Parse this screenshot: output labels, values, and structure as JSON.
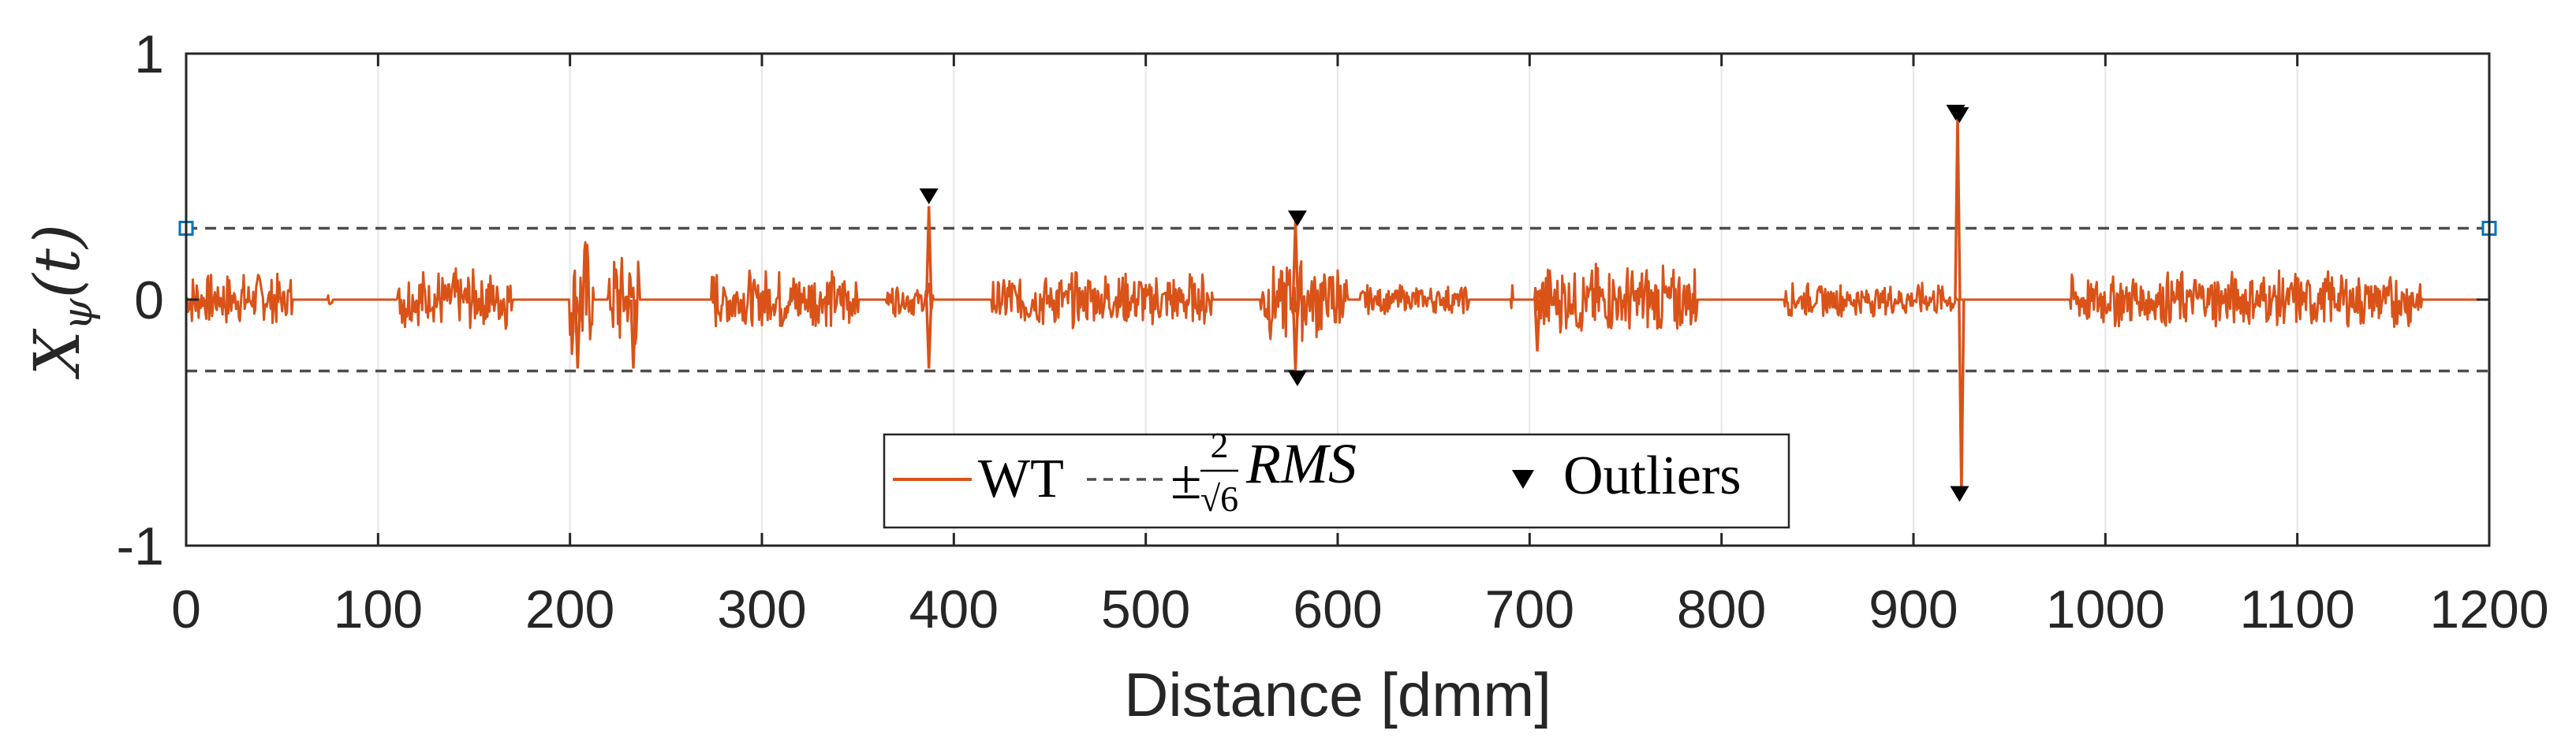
{
  "colors": {
    "series": "#d95319",
    "threshold": "#4d4d4d",
    "outlier": "#000000",
    "marker": "#0072bd",
    "grid": "#e6e6e6",
    "axis": "#262626"
  },
  "chart_data": {
    "type": "line",
    "title": "",
    "xlabel": "Distance [dmm]",
    "ylabel": {
      "base": "X",
      "sub": "ψ",
      "arg": "(t)"
    },
    "xlim": [
      0,
      1200
    ],
    "ylim": [
      -1,
      1
    ],
    "xticks": [
      0,
      100,
      200,
      300,
      400,
      500,
      600,
      700,
      800,
      900,
      1000,
      1100,
      1200
    ],
    "xtick_labels": [
      "0",
      "100",
      "200",
      "300",
      "400",
      "500",
      "600",
      "700",
      "800",
      "900",
      "1000",
      "1100",
      "1200"
    ],
    "yticks": [
      -1,
      0,
      1
    ],
    "ytick_labels": [
      "-1",
      "0",
      "1"
    ],
    "grid": "vertical",
    "series": [
      {
        "name": "WT",
        "style": "solid",
        "bursts": [
          {
            "x0": 0,
            "x1": 55,
            "amp": 0.11
          },
          {
            "x0": 74,
            "x1": 76,
            "amp": 0.03
          },
          {
            "x0": 110,
            "x1": 170,
            "amp": 0.13
          },
          {
            "x0": 200,
            "x1": 212,
            "amp": 0.26
          },
          {
            "x0": 220,
            "x1": 236,
            "amp": 0.22
          },
          {
            "x0": 274,
            "x1": 350,
            "amp": 0.13
          },
          {
            "x0": 365,
            "x1": 389,
            "amp": 0.07
          },
          {
            "x0": 420,
            "x1": 535,
            "amp": 0.12
          },
          {
            "x0": 560,
            "x1": 605,
            "amp": 0.17
          },
          {
            "x0": 612,
            "x1": 668,
            "amp": 0.06
          },
          {
            "x0": 690,
            "x1": 691,
            "amp": 0.08
          },
          {
            "x0": 703,
            "x1": 787,
            "amp": 0.15
          },
          {
            "x0": 833,
            "x1": 922,
            "amp": 0.07
          },
          {
            "x0": 982,
            "x1": 1165,
            "amp": 0.12
          }
        ],
        "spikes": [
          {
            "x": 204,
            "y": -0.28
          },
          {
            "x": 233,
            "y": -0.28
          },
          {
            "x": 387,
            "y": 0.38
          },
          {
            "x": 387,
            "y": -0.28
          },
          {
            "x": 578,
            "y": 0.32
          },
          {
            "x": 578,
            "y": -0.29
          },
          {
            "x": 704,
            "y": -0.21
          },
          {
            "x": 923,
            "y": 0.75
          },
          {
            "x": 925,
            "y": -0.79
          }
        ]
      },
      {
        "name": "±2/√6 RMS",
        "style": "dashed",
        "values": [
          0.29,
          -0.29
        ]
      }
    ],
    "outliers": [
      {
        "x": 387,
        "y": 0.42
      },
      {
        "x": 579,
        "y": 0.33
      },
      {
        "x": 579,
        "y": -0.32
      },
      {
        "x": 922,
        "y": 0.76
      },
      {
        "x": 924,
        "y": 0.75
      },
      {
        "x": 924,
        "y": -0.79
      }
    ],
    "threshold_endpoint_markers": [
      {
        "x": 0,
        "y": 0.29
      },
      {
        "x": 1200,
        "y": 0.29
      }
    ],
    "legend": {
      "placement": "bottom-center",
      "entries": [
        {
          "name": "WT",
          "type": "line"
        },
        {
          "name": "±2/√6 RMS",
          "type": "dashed"
        },
        {
          "name": "Outliers",
          "type": "marker"
        }
      ],
      "labels": {
        "wt": "WT",
        "pm": "±",
        "num": "2",
        "den": "√6",
        "rms": "RMS",
        "outliers": "Outliers"
      }
    }
  }
}
